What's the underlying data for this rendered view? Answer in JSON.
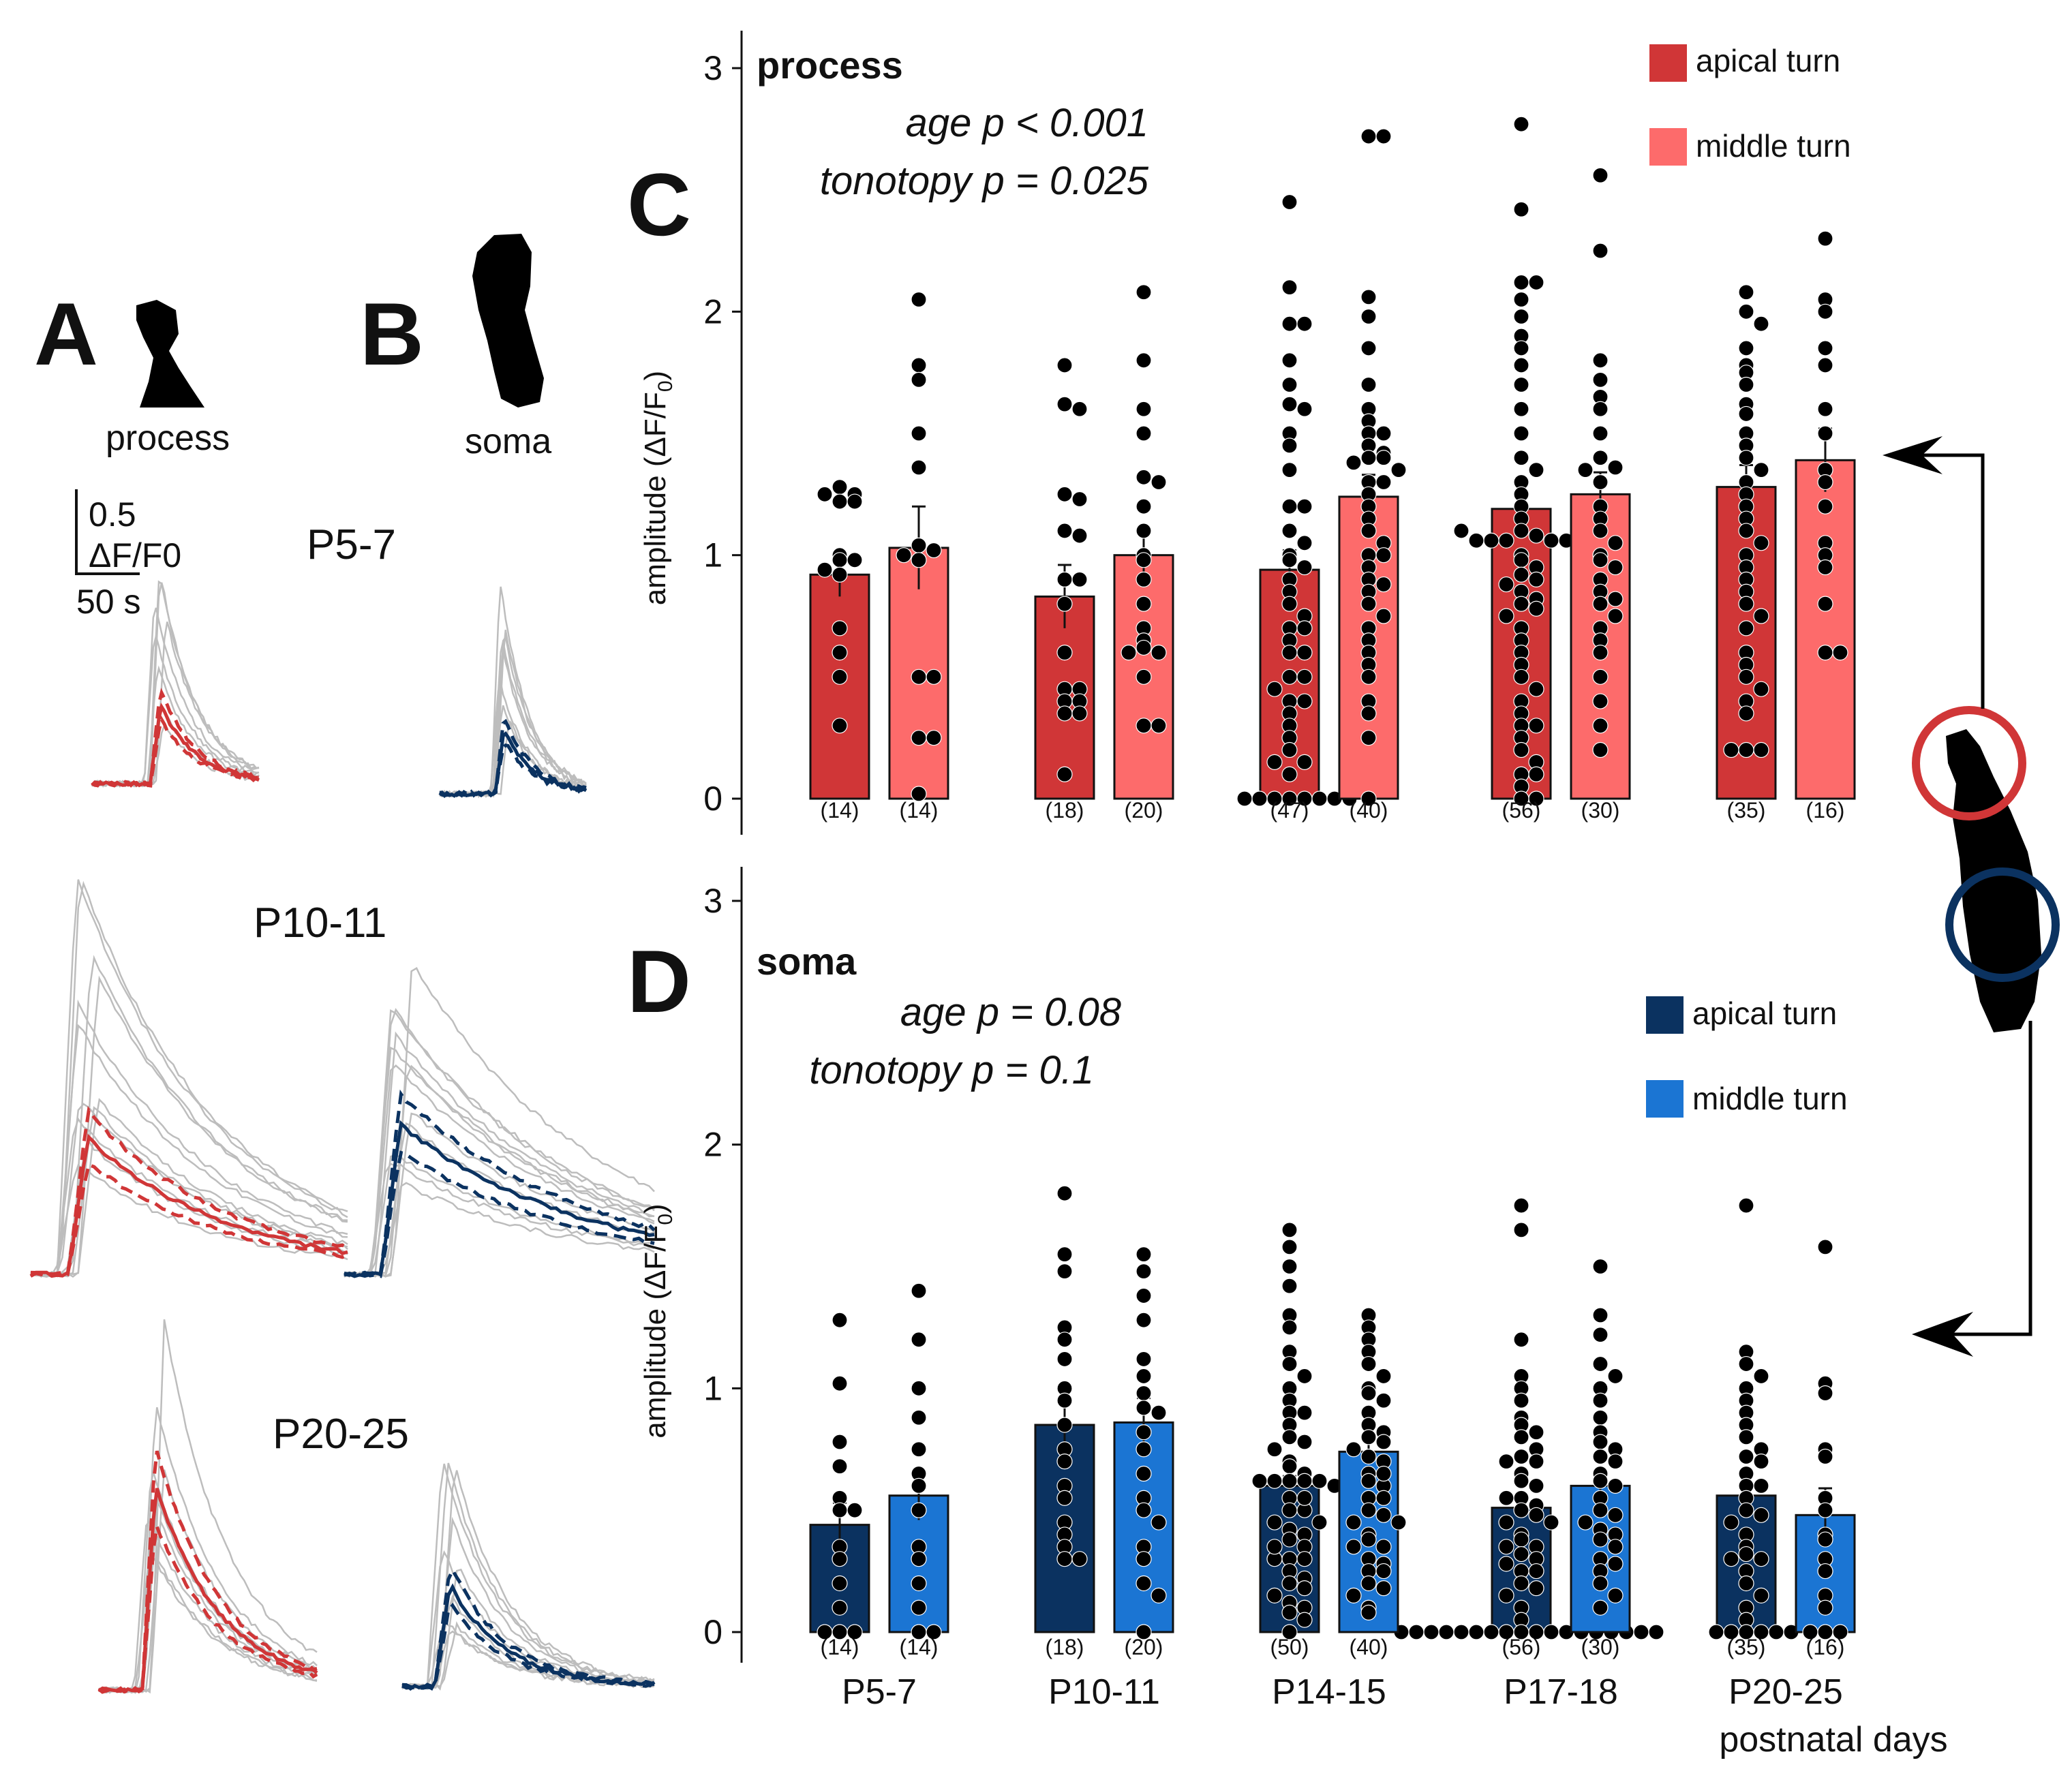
{
  "panels": {
    "A": {
      "letter": "A",
      "label": "process"
    },
    "B": {
      "letter": "B",
      "label": "soma"
    },
    "scale_bar": {
      "y_value": "0.5",
      "y_unit": "ΔF/F0",
      "x_value": "50 s"
    },
    "age_groups": [
      "P5-7",
      "P10-11",
      "P20-25"
    ]
  },
  "colors": {
    "apical_process": "#d03637",
    "middle_process": "#fd6b6b",
    "apical_soma": "#0b3260",
    "middle_soma": "#1b75d3",
    "trace_grey": "#bdbdbd",
    "trace_process": "#d03637",
    "trace_soma": "#0b3260"
  },
  "xlabel_common": "postnatal days",
  "chart_data": [
    {
      "type": "bar",
      "panel": "C",
      "title": "process",
      "stats": [
        "age p < 0.001",
        "tonotopy p = 0.025"
      ],
      "ylabel": "amplitude (ΔF/F",
      "ylabel_sub": "0",
      "ylabel_end": ")",
      "ylim": [
        0,
        3
      ],
      "yticks": [
        "0",
        "1",
        "2",
        "3"
      ],
      "categories": [
        "P5-7",
        "P10-11",
        "P14-15",
        "P17-18",
        "P20-25"
      ],
      "series": [
        {
          "name": "apical turn",
          "values": [
            0.92,
            0.83,
            0.94,
            1.19,
            1.28
          ],
          "sem": [
            0.09,
            0.13,
            0.08,
            0.05,
            0.09
          ],
          "n": [
            "(14)",
            "(18)",
            "(47)",
            "(56)",
            "(35)"
          ]
        },
        {
          "name": "middle turn",
          "values": [
            1.03,
            1.0,
            1.24,
            1.25,
            1.39
          ],
          "sem": [
            0.17,
            0.11,
            0.09,
            0.09,
            0.13
          ],
          "n": [
            "(14)",
            "(20)",
            "(40)",
            "(30)",
            "(16)"
          ]
        }
      ],
      "points": [
        [
          [
            1.28,
            1.25,
            1.25,
            1.22,
            1.22,
            1.0,
            0.98,
            0.98,
            0.94,
            0.92,
            0.7,
            0.6,
            0.5,
            0.3
          ],
          [
            2.05,
            1.78,
            1.72,
            1.5,
            1.36,
            1.04,
            1.02,
            1.0,
            0.5,
            0.5,
            0.25,
            0.25,
            0.02,
            0.98
          ]
        ],
        [
          [
            1.78,
            1.62,
            1.6,
            1.25,
            1.23,
            1.1,
            1.08,
            0.9,
            0.8,
            0.6,
            0.45,
            0.45,
            0.4,
            0.4,
            0.35,
            0.35,
            0.1,
            0.9
          ],
          [
            2.08,
            1.8,
            1.6,
            1.5,
            1.32,
            1.3,
            1.1,
            1.0,
            0.98,
            0.8,
            0.7,
            0.65,
            0.62,
            0.6,
            0.6,
            0.5,
            0.3,
            0.3,
            1.2,
            0.9
          ]
        ],
        [
          [
            2.45,
            2.1,
            1.95,
            1.95,
            1.8,
            1.7,
            1.62,
            1.6,
            1.5,
            1.45,
            1.35,
            1.2,
            1.2,
            1.1,
            1.0,
            0.98,
            0.95,
            0.9,
            0.85,
            0.8,
            0.75,
            0.7,
            0.7,
            0.65,
            0.6,
            0.6,
            0.5,
            0.5,
            0.45,
            0.4,
            0.4,
            0.35,
            0.3,
            0.25,
            0.2,
            0.15,
            0.15,
            0.1,
            0.0,
            0.0,
            0.0,
            0.0,
            0.0,
            0.0,
            0.0,
            0.0,
            1.05
          ],
          [
            2.72,
            2.72,
            2.06,
            1.98,
            1.85,
            1.7,
            1.6,
            1.55,
            1.5,
            1.5,
            1.45,
            1.42,
            1.4,
            1.4,
            1.38,
            1.35,
            1.3,
            1.3,
            1.25,
            1.2,
            1.15,
            1.1,
            1.05,
            1.0,
            0.95,
            0.9,
            0.88,
            0.85,
            0.8,
            0.75,
            0.7,
            0.65,
            0.6,
            0.55,
            0.5,
            0.4,
            0.35,
            0.25,
            0.0,
            1.0
          ]
        ],
        [
          [
            2.77,
            2.42,
            2.12,
            2.12,
            2.05,
            1.98,
            1.9,
            1.85,
            1.78,
            1.7,
            1.6,
            1.5,
            1.4,
            1.35,
            1.3,
            1.25,
            1.2,
            1.15,
            1.1,
            1.08,
            1.06,
            1.06,
            1.06,
            1.06,
            1.06,
            1.06,
            1.0,
            0.98,
            0.95,
            0.92,
            0.9,
            0.88,
            0.85,
            0.82,
            0.8,
            0.78,
            0.75,
            0.7,
            0.65,
            0.6,
            0.55,
            0.5,
            0.45,
            0.4,
            0.35,
            0.3,
            0.3,
            0.25,
            0.2,
            0.15,
            0.1,
            0.1,
            0.05,
            0.0,
            0.0,
            1.1
          ],
          [
            2.56,
            2.25,
            1.8,
            1.72,
            1.65,
            1.6,
            1.5,
            1.4,
            1.36,
            1.35,
            1.3,
            1.2,
            1.15,
            1.1,
            1.05,
            1.0,
            0.98,
            0.95,
            0.9,
            0.85,
            0.82,
            0.8,
            0.75,
            0.7,
            0.65,
            0.6,
            0.5,
            0.4,
            0.2,
            0.3
          ]
        ],
        [
          [
            2.08,
            2.0,
            1.95,
            1.85,
            1.78,
            1.75,
            1.7,
            1.62,
            1.58,
            1.5,
            1.45,
            1.4,
            1.35,
            1.3,
            1.25,
            1.2,
            1.15,
            1.1,
            1.05,
            1.0,
            0.95,
            0.9,
            0.85,
            0.8,
            0.75,
            0.7,
            0.6,
            0.55,
            0.5,
            0.45,
            0.4,
            0.35,
            0.2,
            0.2,
            0.2
          ],
          [
            2.3,
            2.05,
            2.0,
            1.85,
            1.78,
            1.6,
            1.5,
            1.35,
            1.2,
            1.05,
            1.0,
            0.95,
            0.8,
            0.6,
            0.6,
            1.3
          ]
        ]
      ],
      "legend": [
        {
          "name": "apical turn"
        },
        {
          "name": "middle turn"
        }
      ],
      "legend_position": "top-right"
    },
    {
      "type": "bar",
      "panel": "D",
      "title": "soma",
      "stats": [
        "age p = 0.08",
        "tonotopy p = 0.1"
      ],
      "ylabel": "amplitude (ΔF/F",
      "ylabel_sub": "0",
      "ylabel_end": ")",
      "ylim": [
        0,
        3
      ],
      "yticks": [
        "0",
        "1",
        "2",
        "3"
      ],
      "categories": [
        "P5-7",
        "P10-11",
        "P14-15",
        "P17-18",
        "P20-25"
      ],
      "series": [
        {
          "name": "apical turn",
          "values": [
            0.44,
            0.85,
            0.6,
            0.51,
            0.56
          ],
          "sem": [
            0.09,
            0.11,
            0.04,
            0.04,
            0.04
          ],
          "n": [
            "(14)",
            "(18)",
            "(50)",
            "(56)",
            "(35)"
          ]
        },
        {
          "name": "middle turn",
          "values": [
            0.56,
            0.86,
            0.74,
            0.6,
            0.48
          ],
          "sem": [
            0.1,
            0.1,
            0.05,
            0.06,
            0.11
          ],
          "n": [
            "(14)",
            "(20)",
            "(40)",
            "(30)",
            "(16)"
          ]
        }
      ],
      "points": [
        [
          [
            1.28,
            1.02,
            0.78,
            0.68,
            0.55,
            0.5,
            0.5,
            0.35,
            0.3,
            0.2,
            0.1,
            0.0,
            0.0,
            0.0
          ],
          [
            1.4,
            1.2,
            1.0,
            0.88,
            0.75,
            0.65,
            0.6,
            0.5,
            0.35,
            0.3,
            0.2,
            0.1,
            0.0,
            0.0
          ]
        ],
        [
          [
            1.8,
            1.55,
            1.48,
            1.25,
            1.2,
            1.12,
            1.0,
            0.95,
            0.85,
            0.75,
            0.7,
            0.6,
            0.55,
            0.45,
            0.4,
            0.35,
            0.3,
            0.3
          ],
          [
            1.55,
            1.48,
            1.38,
            1.28,
            1.12,
            1.05,
            0.98,
            0.92,
            0.82,
            0.75,
            0.65,
            0.55,
            0.5,
            0.45,
            0.35,
            0.3,
            0.2,
            0.15,
            0.0,
            0.9
          ]
        ],
        [
          [
            1.65,
            1.58,
            1.5,
            1.42,
            1.3,
            1.25,
            1.15,
            1.1,
            1.05,
            1.0,
            0.95,
            0.9,
            0.85,
            0.8,
            0.78,
            0.75,
            0.7,
            0.68,
            0.65,
            0.62,
            0.62,
            0.62,
            0.62,
            0.62,
            0.6,
            0.55,
            0.5,
            0.5,
            0.45,
            0.42,
            0.4,
            0.38,
            0.35,
            0.3,
            0.3,
            0.25,
            0.22,
            0.2,
            0.18,
            0.15,
            0.12,
            0.1,
            0.08,
            0.05,
            0.0,
            0.9,
            0.3,
            0.45,
            0.35,
            0.55
          ],
          [
            1.3,
            1.25,
            1.2,
            1.15,
            1.1,
            1.05,
            1.0,
            0.98,
            0.95,
            0.9,
            0.85,
            0.82,
            0.8,
            0.78,
            0.75,
            0.72,
            0.7,
            0.65,
            0.62,
            0.6,
            0.55,
            0.5,
            0.48,
            0.45,
            0.4,
            0.38,
            0.35,
            0.3,
            0.28,
            0.25,
            0.2,
            0.18,
            0.15,
            0.1,
            0.08,
            0.65,
            0.55,
            0.45,
            0.35,
            0.25
          ]
        ],
        [
          [
            1.75,
            1.65,
            1.2,
            1.05,
            1.0,
            0.95,
            0.88,
            0.85,
            0.82,
            0.8,
            0.75,
            0.72,
            0.7,
            0.65,
            0.62,
            0.6,
            0.55,
            0.52,
            0.5,
            0.48,
            0.45,
            0.4,
            0.38,
            0.35,
            0.32,
            0.3,
            0.28,
            0.25,
            0.2,
            0.18,
            0.15,
            0.1,
            0.05,
            0.0,
            0.0,
            0.0,
            0.0,
            0.0,
            0.0,
            0.0,
            0.0,
            0.0,
            0.0,
            0.0,
            0.0,
            0.0,
            0.0,
            0.0,
            0.0,
            0.0,
            0.0,
            0.55,
            0.45,
            0.35,
            0.25,
            0.7
          ],
          [
            1.5,
            1.3,
            1.22,
            1.1,
            1.05,
            1.0,
            0.95,
            0.88,
            0.82,
            0.78,
            0.75,
            0.72,
            0.7,
            0.65,
            0.62,
            0.6,
            0.55,
            0.5,
            0.48,
            0.45,
            0.42,
            0.4,
            0.38,
            0.35,
            0.3,
            0.28,
            0.25,
            0.2,
            0.15,
            0.1
          ]
        ],
        [
          [
            1.75,
            1.15,
            1.1,
            1.05,
            1.0,
            0.95,
            0.9,
            0.85,
            0.8,
            0.75,
            0.72,
            0.7,
            0.65,
            0.6,
            0.55,
            0.5,
            0.48,
            0.45,
            0.4,
            0.35,
            0.32,
            0.3,
            0.25,
            0.2,
            0.15,
            0.1,
            0.05,
            0.0,
            0.0,
            0.0,
            0.0,
            0.0,
            0.0,
            0.6,
            0.3
          ],
          [
            1.58,
            1.02,
            0.98,
            0.75,
            0.72,
            0.55,
            0.5,
            0.4,
            0.38,
            0.3,
            0.25,
            0.15,
            0.1,
            0.0,
            0.0,
            0.0
          ]
        ]
      ],
      "legend": [
        {
          "name": "apical turn"
        },
        {
          "name": "middle turn"
        }
      ],
      "legend_position": "right"
    }
  ]
}
